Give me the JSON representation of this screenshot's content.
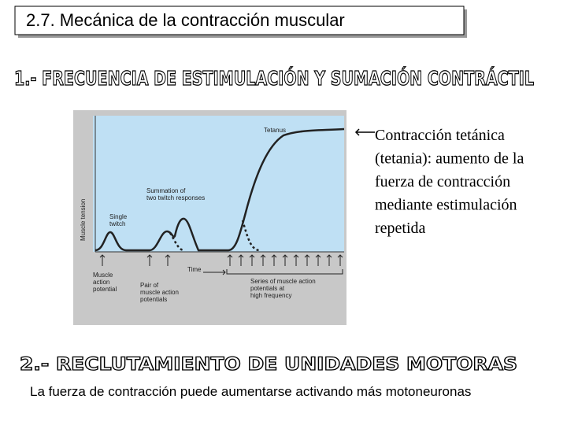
{
  "title": "2.7. Mecánica de la contracción muscular",
  "heading_1": "1.- FRECUENCIA DE ESTIMULACIÓN Y SUMACIÓN CONTRÁCTIL",
  "figure": {
    "y_axis_label": "Muscle tension",
    "x_axis_label": "Time",
    "tetanus_label": "Tetanus",
    "summation_label": [
      "Summation of",
      "two twitch responses"
    ],
    "single_twitch_label": [
      "Single",
      "twitch"
    ],
    "action_potential_label": [
      "Muscle",
      "action",
      "potential"
    ],
    "pair_label": [
      "Pair of",
      "muscle action",
      "potentials"
    ],
    "series_label": [
      "Series of muscle action",
      "potentials at",
      "high frequency"
    ]
  },
  "annotation": [
    "Contracción tetánica",
    "(tetania): aumento de la",
    "fuerza de contracción",
    "mediante estimulación",
    "repetida"
  ],
  "heading_2": "2.- RECLUTAMIENTO DE UNIDADES MOTORAS",
  "footer_text": "La fuerza de contracción puede aumentarse activando más motoneuronas"
}
